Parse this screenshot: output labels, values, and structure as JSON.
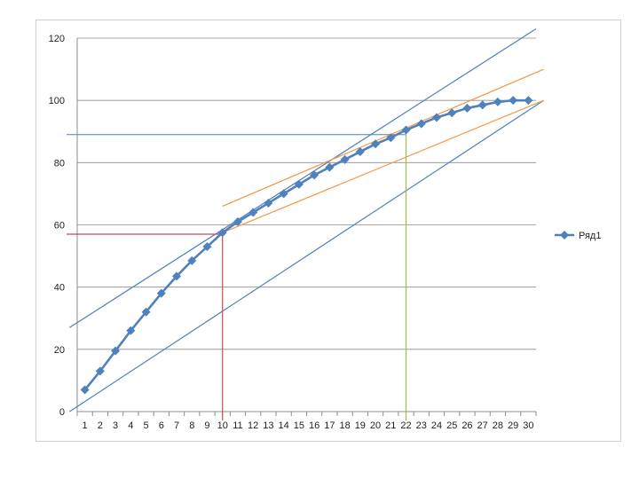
{
  "chart_data": {
    "type": "line",
    "title": "",
    "xlabel": "",
    "ylabel": "",
    "categories": [
      1,
      2,
      3,
      4,
      5,
      6,
      7,
      8,
      9,
      10,
      11,
      12,
      13,
      14,
      15,
      16,
      17,
      18,
      19,
      20,
      21,
      22,
      23,
      24,
      25,
      26,
      27,
      28,
      29,
      30
    ],
    "ylim": [
      0,
      120
    ],
    "yticks": [
      0,
      20,
      40,
      60,
      80,
      100,
      120
    ],
    "grid": true,
    "legend_position": "right",
    "series": [
      {
        "name": "Ряд1",
        "color": "#4f81bd",
        "marker": "diamond",
        "values": [
          7,
          13,
          19.5,
          26,
          32,
          38,
          43.5,
          48.5,
          53,
          57.5,
          61,
          64,
          67,
          70,
          73,
          76,
          78.5,
          81,
          83.5,
          86,
          88,
          90.5,
          92.5,
          94.5,
          96,
          97.5,
          98.5,
          99.5,
          100,
          100
        ]
      }
    ],
    "annotations": {
      "blue_lines": [
        {
          "from": [
            0,
            27
          ],
          "to": [
            30.5,
            123
          ]
        },
        {
          "from": [
            0,
            0
          ],
          "to": [
            31,
            100
          ]
        }
      ],
      "blue_horizontal": {
        "y": 89,
        "x_from": 0,
        "x_to": 22
      },
      "orange_lines": [
        {
          "from": [
            10,
            66
          ],
          "to": [
            31,
            110
          ]
        },
        {
          "from": [
            10,
            57.5
          ],
          "to": [
            31,
            100
          ]
        }
      ],
      "red_guides": {
        "x": 10,
        "y": 57
      },
      "green_guide": {
        "x": 22,
        "y": 89
      }
    }
  }
}
